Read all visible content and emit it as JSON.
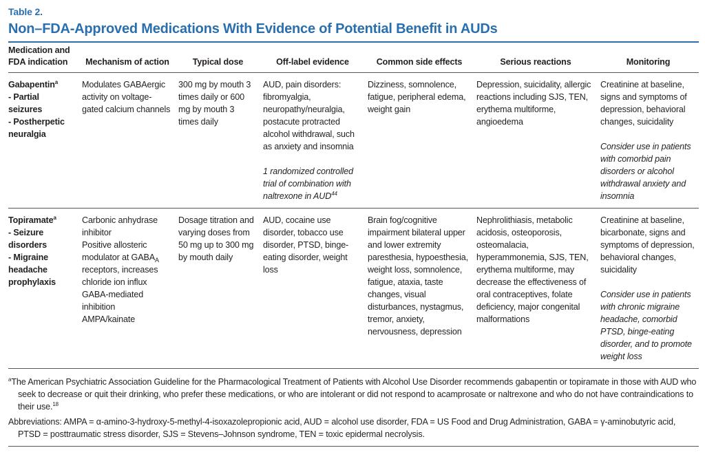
{
  "label": "Table 2.",
  "title": "Non–FDA-Approved Medications With Evidence of Potential Benefit in AUDs",
  "table": {
    "headers": [
      "Medication and FDA indication",
      "Mechanism of action",
      "Typical dose",
      "Off-label evidence",
      "Common side effects",
      "Serious reactions",
      "Monitoring"
    ],
    "rows": [
      [
        [
          {
            "runs": [
              "Gabapentin",
              {
                "sup": "a"
              }
            ]
          },
          {
            "runs": [
              "- Partial seizures"
            ]
          },
          {
            "runs": [
              "- Postherpetic neuralgia"
            ]
          }
        ],
        [
          {
            "runs": [
              "Modulates GABAergic activity on voltage-gated calcium channels"
            ]
          }
        ],
        [
          {
            "runs": [
              "300 mg by mouth 3 times daily or 600 mg by mouth 3 times daily"
            ]
          }
        ],
        [
          {
            "runs": [
              "AUD, pain disorders: fibromyalgia, neuropathy/neuralgia, postacute protracted alcohol withdrawal, such as anxiety and insomnia"
            ]
          },
          {
            "italic": true,
            "runs": [
              "1 randomized controlled trial of combination with naltrexone in AUD",
              {
                "sup": "44"
              }
            ]
          }
        ],
        [
          {
            "runs": [
              "Dizziness, somnolence, fatigue, peripheral edema, weight gain"
            ]
          }
        ],
        [
          {
            "runs": [
              "Depression, suicidality, allergic reactions including SJS, TEN, erythema multiforme, angioedema"
            ]
          }
        ],
        [
          {
            "runs": [
              "Creatinine at baseline, signs and symptoms of depression, behavioral changes, suicidality"
            ]
          },
          {
            "italic": true,
            "runs": [
              "Consider use in patients with comorbid pain disorders or alcohol withdrawal anxiety and insomnia"
            ]
          }
        ]
      ],
      [
        [
          {
            "runs": [
              "Topiramate",
              {
                "sup": "a"
              }
            ]
          },
          {
            "runs": [
              "- Seizure disorders"
            ]
          },
          {
            "runs": [
              "- Migraine headache prophylaxis"
            ]
          }
        ],
        [
          {
            "runs": [
              "Carbonic anhydrase inhibitor"
            ]
          },
          {
            "runs": [
              "Positive allosteric modulator at GABA",
              {
                "sub": "A"
              },
              " receptors, increases chloride ion influx GABA-mediated inhibition"
            ]
          },
          {
            "runs": [
              "AMPA/kainate"
            ]
          }
        ],
        [
          {
            "runs": [
              "Dosage titration and varying doses from 50 mg up to 300 mg by mouth daily"
            ]
          }
        ],
        [
          {
            "runs": [
              "AUD, cocaine use disorder, tobacco use disorder, PTSD, binge-eating disorder, weight loss"
            ]
          }
        ],
        [
          {
            "runs": [
              "Brain fog/cognitive impairment bilateral upper and lower extremity paresthesia, hypoesthesia, weight loss, somnolence, fatigue, ataxia, taste changes, visual disturbances, nystagmus, tremor, anxiety, nervousness, depression"
            ]
          }
        ],
        [
          {
            "runs": [
              "Nephrolithiasis, metabolic acidosis, osteoporosis, osteomalacia, hyperammonemia, SJS, TEN, erythema multiforme, may decrease the effectiveness of oral contraceptives, folate deficiency, major congenital malformations"
            ]
          }
        ],
        [
          {
            "runs": [
              "Creatinine at baseline, bicarbonate, signs and symptoms of depression, behavioral changes, suicidality"
            ]
          },
          {
            "italic": true,
            "runs": [
              "Consider use in patients with chronic migraine headache, comorbid PTSD, binge-eating disorder, and to promote weight loss"
            ]
          }
        ]
      ]
    ]
  },
  "footnotes": [
    {
      "runs": [
        {
          "sup": "a"
        },
        "The American Psychiatric Association Guideline for the Pharmacological Treatment of Patients with Alcohol Use Disorder recommends gabapentin or topiramate in those with AUD who seek to decrease or quit their drinking, who prefer these medications, or who are intolerant or did not respond to acamprosate or naltrexone and who do not have contraindications to their use.",
        {
          "sup": "18"
        }
      ]
    },
    {
      "runs": [
        "Abbreviations: AMPA = α-amino-3-hydroxy-5-methyl-4-isoxazolepropionic acid, AUD = alcohol use disorder, FDA = US Food and Drug Administration, GABA = γ-aminobutyric acid, PTSD = posttraumatic stress disorder, SJS = Stevens–Johnson syndrome, TEN = toxic epidermal necrolysis."
      ]
    }
  ]
}
